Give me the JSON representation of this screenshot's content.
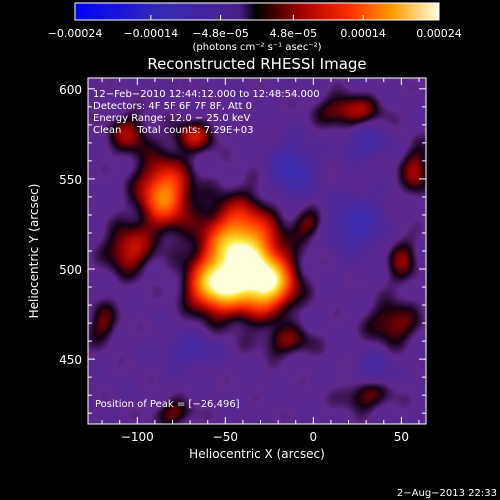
{
  "chart_data": {
    "type": "heatmap",
    "title": "Reconstructed RHESSI Image",
    "xlabel": "Heliocentric X (arcsec)",
    "ylabel": "Heliocentric Y (arcsec)",
    "xlim": [
      -128,
      64
    ],
    "ylim": [
      414,
      606
    ],
    "x_ticks": [
      -100,
      -50,
      0,
      50
    ],
    "y_ticks": [
      450,
      500,
      550,
      600
    ],
    "x_tick_labels": [
      "−100",
      "−50",
      "0",
      "50"
    ],
    "y_tick_labels": [
      "450",
      "500",
      "550",
      "600"
    ],
    "colorbar": {
      "range": [
        -0.00024,
        0.00024
      ],
      "ticks": [
        -0.00024,
        -0.00014,
        -4.8e-05,
        4.8e-05,
        0.00014,
        0.00024
      ],
      "tick_labels": [
        "−0.00024",
        "−0.00014",
        "−4.8e−05",
        "4.8e−05",
        "0.00014",
        "0.00024"
      ],
      "units": "(photons cm⁻² s⁻¹ asec⁻²)"
    },
    "annotations": [
      "12−Feb−2010 12:44:12.000 to 12:48:54.000",
      "Detectors: 4F 5F 6F 7F 8F, Att 0",
      "Energy Range: 12.0 − 25.0 keV",
      "Clean     Total counts: 7.29E+03"
    ],
    "peak_label": "Position of Peak = [−26,496]",
    "sources": [
      {
        "x": -42,
        "y": 507,
        "sx": 14,
        "sy": 18,
        "amp": 2.2
      },
      {
        "x": -25,
        "y": 492,
        "sx": 10,
        "sy": 10,
        "amp": 1.5
      },
      {
        "x": -57,
        "y": 490,
        "sx": 10,
        "sy": 9,
        "amp": 1.3
      },
      {
        "x": -85,
        "y": 542,
        "sx": 10,
        "sy": 13,
        "amp": 1.4
      },
      {
        "x": -105,
        "y": 511,
        "sx": 9,
        "sy": 9,
        "amp": 0.8
      },
      {
        "x": -68,
        "y": 574,
        "sx": 8,
        "sy": 6,
        "amp": 0.7
      },
      {
        "x": 20,
        "y": 588,
        "sx": 12,
        "sy": 6,
        "amp": 0.7
      },
      {
        "x": 58,
        "y": 555,
        "sx": 6,
        "sy": 10,
        "amp": 0.6
      },
      {
        "x": 45,
        "y": 470,
        "sx": 10,
        "sy": 8,
        "amp": 0.6
      },
      {
        "x": -105,
        "y": 575,
        "sx": 8,
        "sy": 8,
        "amp": 0.6
      },
      {
        "x": -3,
        "y": 525,
        "sx": 6,
        "sy": 6,
        "amp": 0.5
      },
      {
        "x": -15,
        "y": 460,
        "sx": 10,
        "sy": 6,
        "amp": 0.5
      },
      {
        "x": -120,
        "y": 470,
        "sx": 6,
        "sy": 8,
        "amp": 0.5
      },
      {
        "x": 30,
        "y": 430,
        "sx": 10,
        "sy": 6,
        "amp": 0.5
      },
      {
        "x": 50,
        "y": 505,
        "sx": 6,
        "sy": 10,
        "amp": 0.5
      },
      {
        "x": -80,
        "y": 420,
        "sx": 8,
        "sy": 5,
        "amp": 0.5
      }
    ],
    "minima": [
      {
        "x": -12,
        "y": 555,
        "sx": 8,
        "sy": 10,
        "amp": -0.9
      },
      {
        "x": 25,
        "y": 525,
        "sx": 10,
        "sy": 10,
        "amp": -0.8
      },
      {
        "x": 30,
        "y": 570,
        "sx": 8,
        "sy": 6,
        "amp": -0.6
      },
      {
        "x": -70,
        "y": 455,
        "sx": 10,
        "sy": 6,
        "amp": -0.5
      },
      {
        "x": 35,
        "y": 445,
        "sx": 6,
        "sy": 6,
        "amp": -0.5
      }
    ]
  },
  "footer": {
    "date": "2−Aug−2013 22:33"
  }
}
